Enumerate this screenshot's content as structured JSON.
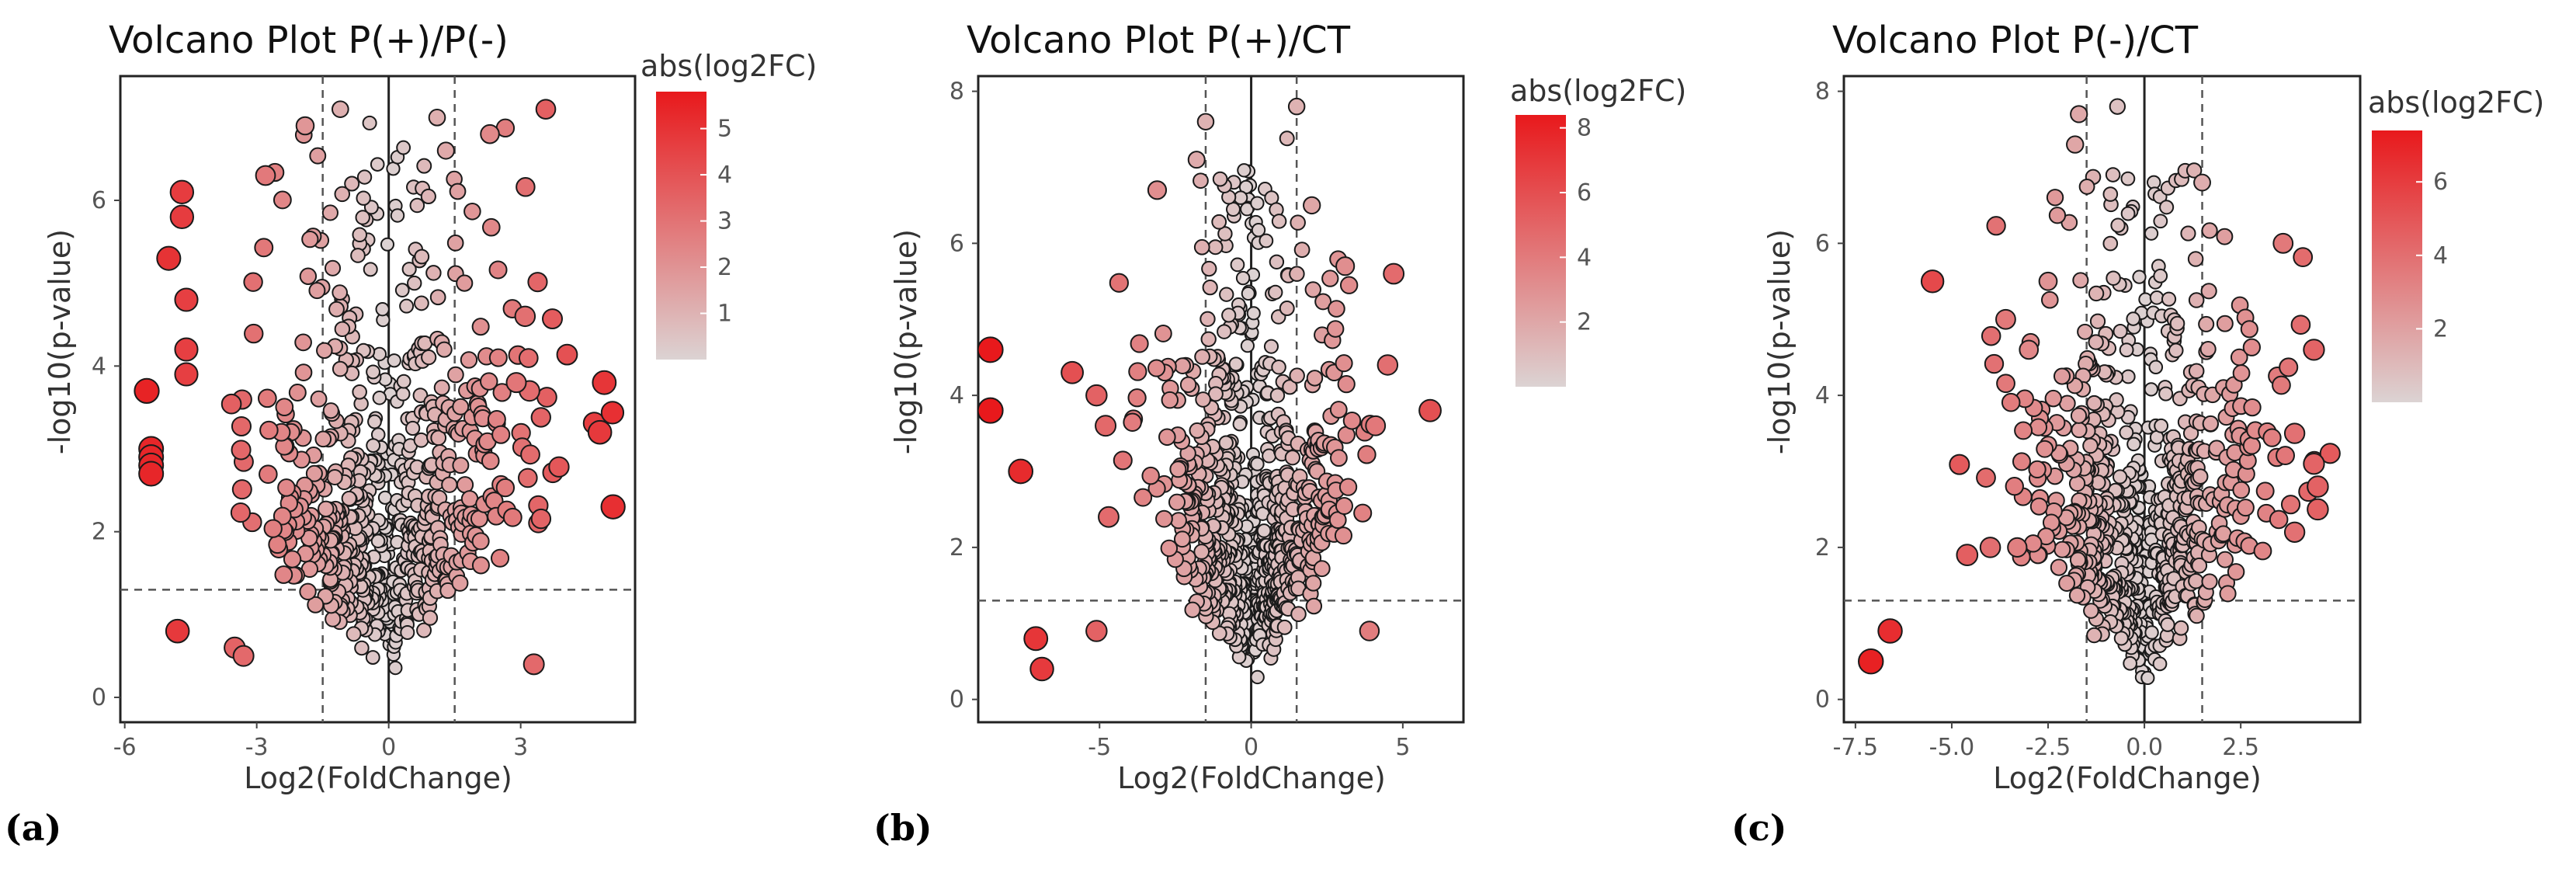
{
  "chart_data": [
    {
      "type": "scatter",
      "panel_label": "(a)",
      "title": "Volcano Plot P(+)/P(-)",
      "xlabel": "Log2(FoldChange)",
      "ylabel": "-log10(p-value)",
      "xlim": [
        -6.1,
        5.6
      ],
      "ylim": [
        -0.3,
        7.5
      ],
      "xticks": [
        -6,
        -3,
        0,
        3
      ],
      "xtick_labels": [
        "-6",
        "-3",
        "0",
        "3"
      ],
      "yticks": [
        0,
        2,
        4,
        6
      ],
      "ytick_labels": [
        "0",
        "2",
        "4",
        "6"
      ],
      "fc_threshold": 1.5,
      "p_threshold": 1.3,
      "legend": {
        "title": "abs(log2FC)",
        "min": 0,
        "max": 5.8,
        "ticks": [
          1,
          2,
          3,
          4,
          5
        ],
        "tick_labels": [
          "1",
          "2",
          "3",
          "4",
          "5"
        ],
        "color_low": "#dcd3d3",
        "color_high": "#e8191c"
      },
      "highlighted_points": [
        {
          "x": -5.5,
          "y": 3.7
        },
        {
          "x": -5.4,
          "y": 3.0
        },
        {
          "x": -5.4,
          "y": 2.9
        },
        {
          "x": -5.4,
          "y": 2.8
        },
        {
          "x": -5.4,
          "y": 2.7
        },
        {
          "x": -5.0,
          "y": 5.3
        },
        {
          "x": -4.7,
          "y": 6.1
        },
        {
          "x": -4.7,
          "y": 5.8
        },
        {
          "x": -4.6,
          "y": 4.8
        },
        {
          "x": -4.6,
          "y": 4.2
        },
        {
          "x": -4.6,
          "y": 3.9
        },
        {
          "x": -4.8,
          "y": 0.8
        },
        {
          "x": -3.5,
          "y": 0.6
        },
        {
          "x": -3.3,
          "y": 0.5
        },
        {
          "x": -2.8,
          "y": 6.3
        },
        {
          "x": -1.9,
          "y": 6.9
        },
        {
          "x": -1.1,
          "y": 7.1
        },
        {
          "x": 1.1,
          "y": 7.0
        },
        {
          "x": 2.3,
          "y": 6.8
        },
        {
          "x": 1.3,
          "y": 6.6
        },
        {
          "x": 3.1,
          "y": 4.6
        },
        {
          "x": 3.2,
          "y": 3.7
        },
        {
          "x": 2.9,
          "y": 3.8
        },
        {
          "x": 3.3,
          "y": 0.4
        },
        {
          "x": 4.9,
          "y": 3.8
        },
        {
          "x": 4.8,
          "y": 3.2
        },
        {
          "x": 5.1,
          "y": 2.3
        }
      ],
      "background_points": 650,
      "seed": 11
    },
    {
      "type": "scatter",
      "panel_label": "(b)",
      "title": "Volcano Plot P(+)/CT",
      "xlabel": "Log2(FoldChange)",
      "ylabel": "-log10(p-value)",
      "xlim": [
        -9.0,
        7.0
      ],
      "ylim": [
        -0.3,
        8.2
      ],
      "xticks": [
        -5,
        0,
        5
      ],
      "xtick_labels": [
        "-5",
        "0",
        "5"
      ],
      "yticks": [
        0,
        2,
        4,
        6,
        8
      ],
      "ytick_labels": [
        "0",
        "2",
        "4",
        "6",
        "8"
      ],
      "fc_threshold": 1.5,
      "p_threshold": 1.3,
      "legend": {
        "title": "abs(log2FC)",
        "min": 0,
        "max": 8.4,
        "ticks": [
          2,
          4,
          6,
          8
        ],
        "tick_labels": [
          "2",
          "4",
          "6",
          "8"
        ],
        "color_low": "#dcd3d3",
        "color_high": "#e8191c"
      },
      "highlighted_points": [
        {
          "x": -8.6,
          "y": 4.6
        },
        {
          "x": -8.6,
          "y": 3.8
        },
        {
          "x": -7.6,
          "y": 3.0
        },
        {
          "x": -7.1,
          "y": 0.8
        },
        {
          "x": -6.9,
          "y": 0.4
        },
        {
          "x": -5.1,
          "y": 0.9
        },
        {
          "x": -4.7,
          "y": 2.4
        },
        {
          "x": -5.9,
          "y": 4.3
        },
        {
          "x": -5.1,
          "y": 4.0
        },
        {
          "x": -4.8,
          "y": 3.6
        },
        {
          "x": -3.1,
          "y": 6.7
        },
        {
          "x": -1.8,
          "y": 7.1
        },
        {
          "x": -1.5,
          "y": 7.6
        },
        {
          "x": 1.5,
          "y": 7.8
        },
        {
          "x": 2.0,
          "y": 6.5
        },
        {
          "x": 3.1,
          "y": 5.7
        },
        {
          "x": 4.7,
          "y": 5.6
        },
        {
          "x": 5.9,
          "y": 3.8
        },
        {
          "x": 4.5,
          "y": 4.4
        },
        {
          "x": 4.1,
          "y": 3.6
        },
        {
          "x": 3.9,
          "y": 0.9
        }
      ],
      "background_points": 750,
      "seed": 29
    },
    {
      "type": "scatter",
      "panel_label": "(c)",
      "title": "Volcano Plot P(-)/CT",
      "xlabel": "Log2(FoldChange)",
      "ylabel": "-log10(p-value)",
      "xlim": [
        -7.8,
        5.6
      ],
      "ylim": [
        -0.3,
        8.2
      ],
      "xticks": [
        -7.5,
        -5.0,
        -2.5,
        0.0,
        2.5
      ],
      "xtick_labels": [
        "-7.5",
        "-5.0",
        "-2.5",
        "0.0",
        "2.5"
      ],
      "yticks": [
        0,
        2,
        4,
        6,
        8
      ],
      "ytick_labels": [
        "0",
        "2",
        "4",
        "6",
        "8"
      ],
      "fc_threshold": 1.5,
      "p_threshold": 1.3,
      "legend": {
        "title": "abs(log2FC)",
        "min": 0,
        "max": 7.4,
        "ticks": [
          2,
          4,
          6
        ],
        "tick_labels": [
          "2",
          "4",
          "6"
        ],
        "color_low": "#dcd3d3",
        "color_high": "#e8191c"
      },
      "highlighted_points": [
        {
          "x": -7.1,
          "y": 0.5
        },
        {
          "x": -6.6,
          "y": 0.9
        },
        {
          "x": -5.5,
          "y": 5.5
        },
        {
          "x": -4.6,
          "y": 1.9
        },
        {
          "x": -4.0,
          "y": 2.0
        },
        {
          "x": -3.3,
          "y": 2.0
        },
        {
          "x": -3.6,
          "y": 5.0
        },
        {
          "x": -3.0,
          "y": 4.6
        },
        {
          "x": -2.5,
          "y": 5.5
        },
        {
          "x": -1.7,
          "y": 7.7
        },
        {
          "x": -1.8,
          "y": 7.3
        },
        {
          "x": -0.7,
          "y": 7.8
        },
        {
          "x": 1.5,
          "y": 6.8
        },
        {
          "x": 3.6,
          "y": 6.0
        },
        {
          "x": 4.4,
          "y": 4.6
        },
        {
          "x": 4.4,
          "y": 3.1
        },
        {
          "x": 4.5,
          "y": 2.8
        },
        {
          "x": 4.5,
          "y": 2.5
        },
        {
          "x": 3.9,
          "y": 2.2
        },
        {
          "x": 3.9,
          "y": 3.5
        }
      ],
      "background_points": 700,
      "seed": 47
    }
  ]
}
